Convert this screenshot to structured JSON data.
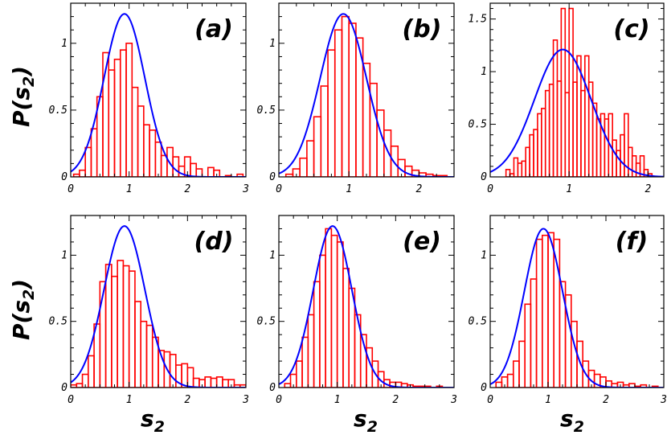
{
  "figure": {
    "ylabel_main": "P(s",
    "ylabel_sub": "2",
    "ylabel_close": ")",
    "xlabel_main": "s",
    "xlabel_sub": "2"
  },
  "colors": {
    "histogram": "#ff0000",
    "fit_curve": "#0000ff",
    "axes": "#000000"
  },
  "chart_data": [
    {
      "type": "bar",
      "label": "(a)",
      "xlim": [
        0,
        3
      ],
      "ylim": [
        0,
        1.3
      ],
      "xticks": [
        0,
        1,
        2,
        3
      ],
      "xtick_labels": [
        "0",
        "1",
        "2",
        "3"
      ],
      "yticks": [
        0,
        0.5,
        1
      ],
      "ytick_labels": [
        "0",
        "0.5",
        "1"
      ],
      "bin_edges": [
        0.05,
        0.15,
        0.25,
        0.35,
        0.45,
        0.55,
        0.65,
        0.75,
        0.85,
        0.95,
        1.05,
        1.15,
        1.25,
        1.35,
        1.45,
        1.55,
        1.65,
        1.75,
        1.85,
        1.95,
        2.05,
        2.15,
        2.25,
        2.35,
        2.45,
        2.55,
        2.65,
        2.75,
        2.85,
        2.95
      ],
      "values": [
        0.02,
        0.05,
        0.22,
        0.36,
        0.6,
        0.93,
        0.8,
        0.88,
        0.95,
        1.0,
        0.67,
        0.53,
        0.39,
        0.35,
        0.26,
        0.16,
        0.22,
        0.15,
        0.08,
        0.15,
        0.1,
        0.06,
        0.0,
        0.07,
        0.05,
        0.0,
        0.01,
        0.0,
        0.02
      ],
      "fit_peak": 0.92,
      "fit_width": 0.35,
      "fit_max": 1.22
    },
    {
      "type": "bar",
      "label": "(b)",
      "xlim": [
        0,
        2.5
      ],
      "ylim": [
        0,
        1.3
      ],
      "xticks": [
        0,
        1,
        2
      ],
      "xtick_labels": [
        "0",
        "1",
        "2"
      ],
      "yticks": [
        0,
        0.5,
        1
      ],
      "ytick_labels": [
        "0",
        "0.5",
        "1"
      ],
      "bin_edges": [
        0.1,
        0.2,
        0.3,
        0.4,
        0.5,
        0.6,
        0.7,
        0.8,
        0.9,
        1.0,
        1.1,
        1.2,
        1.3,
        1.4,
        1.5,
        1.6,
        1.7,
        1.8,
        1.9,
        2.0,
        2.1,
        2.2,
        2.3,
        2.4
      ],
      "values": [
        0.02,
        0.06,
        0.14,
        0.27,
        0.45,
        0.68,
        0.95,
        1.1,
        1.2,
        1.15,
        1.04,
        0.85,
        0.7,
        0.5,
        0.35,
        0.23,
        0.13,
        0.08,
        0.05,
        0.03,
        0.02,
        0.01,
        0.01
      ],
      "fit_peak": 0.92,
      "fit_width": 0.33,
      "fit_max": 1.22
    },
    {
      "type": "bar",
      "label": "(c)",
      "xlim": [
        0,
        2.2
      ],
      "ylim": [
        0,
        1.65
      ],
      "xticks": [
        0,
        1,
        2
      ],
      "xtick_labels": [
        "0",
        "1",
        "2"
      ],
      "yticks": [
        0,
        0.5,
        1,
        1.5
      ],
      "ytick_labels": [
        "0",
        "0.5",
        "1",
        "1.5"
      ],
      "bin_edges": [
        0.2,
        0.25,
        0.3,
        0.35,
        0.4,
        0.45,
        0.5,
        0.55,
        0.6,
        0.65,
        0.7,
        0.75,
        0.8,
        0.85,
        0.9,
        0.95,
        1.0,
        1.05,
        1.1,
        1.15,
        1.2,
        1.25,
        1.3,
        1.35,
        1.4,
        1.45,
        1.5,
        1.55,
        1.6,
        1.65,
        1.7,
        1.75,
        1.8,
        1.85,
        1.9,
        1.95,
        2.0,
        2.05
      ],
      "values": [
        0.07,
        0.03,
        0.18,
        0.13,
        0.15,
        0.28,
        0.4,
        0.45,
        0.6,
        0.65,
        0.82,
        0.88,
        1.3,
        0.91,
        1.6,
        0.8,
        1.6,
        0.9,
        1.15,
        0.82,
        1.15,
        0.9,
        0.7,
        0.55,
        0.6,
        0.55,
        0.6,
        0.35,
        0.25,
        0.4,
        0.6,
        0.28,
        0.2,
        0.13,
        0.2,
        0.07,
        0.03
      ],
      "fit_peak": 0.92,
      "fit_width": 0.36,
      "fit_max": 1.21
    },
    {
      "type": "bar",
      "label": "(d)",
      "xlim": [
        0,
        3
      ],
      "ylim": [
        0,
        1.3
      ],
      "xticks": [
        0,
        1,
        2,
        3
      ],
      "xtick_labels": [
        "0",
        "1",
        "2",
        "3"
      ],
      "yticks": [
        0,
        0.5,
        1
      ],
      "ytick_labels": [
        "0",
        "0.5",
        "1"
      ],
      "bin_edges": [
        0.0,
        0.1,
        0.2,
        0.3,
        0.4,
        0.5,
        0.6,
        0.7,
        0.8,
        0.9,
        1.0,
        1.1,
        1.2,
        1.3,
        1.4,
        1.5,
        1.6,
        1.7,
        1.8,
        1.9,
        2.0,
        2.1,
        2.2,
        2.3,
        2.4,
        2.5,
        2.6,
        2.7,
        2.8,
        2.9,
        3.0
      ],
      "values": [
        0.02,
        0.03,
        0.1,
        0.24,
        0.48,
        0.8,
        0.93,
        0.84,
        0.96,
        0.92,
        0.88,
        0.65,
        0.5,
        0.47,
        0.38,
        0.28,
        0.27,
        0.25,
        0.17,
        0.18,
        0.15,
        0.07,
        0.06,
        0.08,
        0.07,
        0.08,
        0.06,
        0.06,
        0.02,
        0.02
      ],
      "fit_peak": 0.92,
      "fit_width": 0.35,
      "fit_max": 1.22
    },
    {
      "type": "bar",
      "label": "(e)",
      "xlim": [
        0,
        3
      ],
      "ylim": [
        0,
        1.3
      ],
      "xticks": [
        0,
        1,
        2,
        3
      ],
      "xtick_labels": [
        "0",
        "1",
        "2",
        "3"
      ],
      "yticks": [
        0,
        0.5,
        1
      ],
      "ytick_labels": [
        "0",
        "0.5",
        "1"
      ],
      "bin_edges": [
        0.0,
        0.1,
        0.2,
        0.3,
        0.4,
        0.5,
        0.6,
        0.7,
        0.8,
        0.9,
        1.0,
        1.1,
        1.2,
        1.3,
        1.4,
        1.5,
        1.6,
        1.7,
        1.8,
        1.9,
        2.0,
        2.1,
        2.2,
        2.3,
        2.4,
        2.5,
        2.6,
        2.7,
        2.8,
        2.9,
        3.0
      ],
      "values": [
        0.0,
        0.03,
        0.1,
        0.2,
        0.38,
        0.55,
        0.8,
        1.0,
        1.2,
        1.15,
        1.1,
        0.9,
        0.75,
        0.55,
        0.4,
        0.3,
        0.2,
        0.12,
        0.06,
        0.04,
        0.04,
        0.03,
        0.02,
        0.01,
        0.01,
        0.01,
        0.0,
        0.01,
        0.0,
        0.0
      ],
      "fit_peak": 0.92,
      "fit_width": 0.33,
      "fit_max": 1.22
    },
    {
      "type": "bar",
      "label": "(f)",
      "xlim": [
        0,
        3
      ],
      "ylim": [
        0,
        1.3
      ],
      "xticks": [
        0,
        1,
        2,
        3
      ],
      "xtick_labels": [
        "0",
        "1",
        "2",
        "3"
      ],
      "yticks": [
        0,
        0.5,
        1
      ],
      "ytick_labels": [
        "0",
        "0.5",
        "1"
      ],
      "bin_edges": [
        0.0,
        0.1,
        0.2,
        0.3,
        0.4,
        0.5,
        0.6,
        0.7,
        0.8,
        0.9,
        1.0,
        1.1,
        1.2,
        1.3,
        1.4,
        1.5,
        1.6,
        1.7,
        1.8,
        1.9,
        2.0,
        2.1,
        2.2,
        2.3,
        2.4,
        2.5,
        2.6,
        2.7,
        2.8,
        2.9,
        3.0
      ],
      "values": [
        0.0,
        0.04,
        0.08,
        0.1,
        0.2,
        0.35,
        0.63,
        0.82,
        1.12,
        1.15,
        1.17,
        1.12,
        0.8,
        0.7,
        0.5,
        0.35,
        0.2,
        0.13,
        0.1,
        0.08,
        0.05,
        0.03,
        0.04,
        0.02,
        0.03,
        0.01,
        0.02,
        0.0,
        0.01,
        0.0
      ],
      "fit_peak": 0.92,
      "fit_width": 0.33,
      "fit_max": 1.2
    }
  ]
}
